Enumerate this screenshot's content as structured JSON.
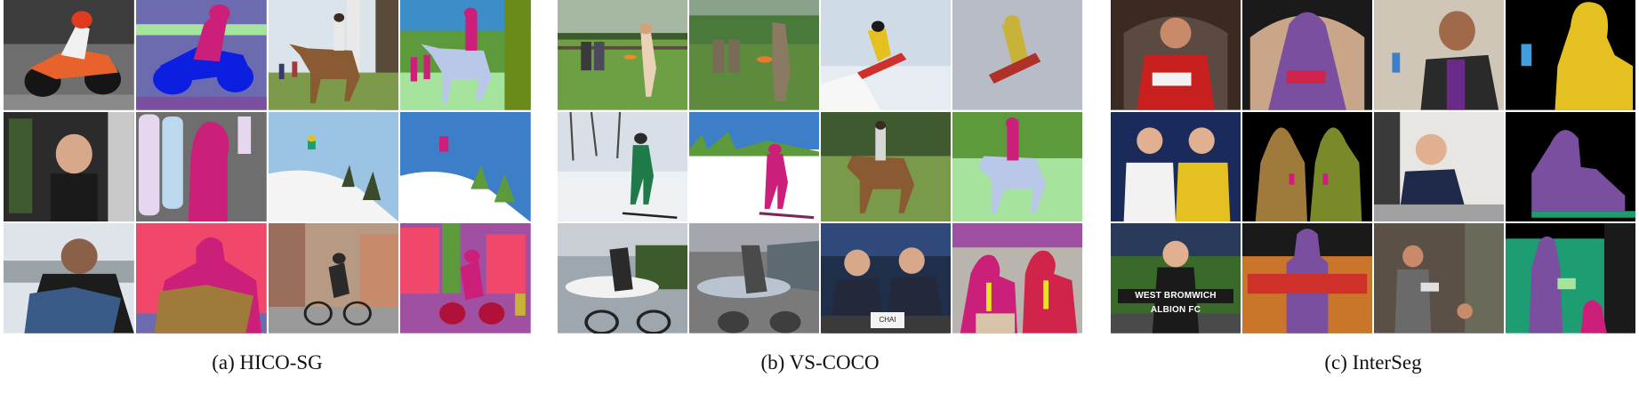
{
  "figure": {
    "panels": [
      {
        "key": "a",
        "caption": "(a) HICO-SG"
      },
      {
        "key": "b",
        "caption": "(b) VS-COCO"
      },
      {
        "key": "c",
        "caption": "(c) InterSeg"
      }
    ]
  },
  "photo_text": {
    "scarf": "WEST BROMWICH ALBION FC",
    "card": "CHAI"
  },
  "colors": {
    "segmentation_purple": "#7a4fa0",
    "segmentation_magenta": "#cc1f7a",
    "segmentation_teal": "#1f9d72",
    "segmentation_yellow": "#e5c021"
  }
}
